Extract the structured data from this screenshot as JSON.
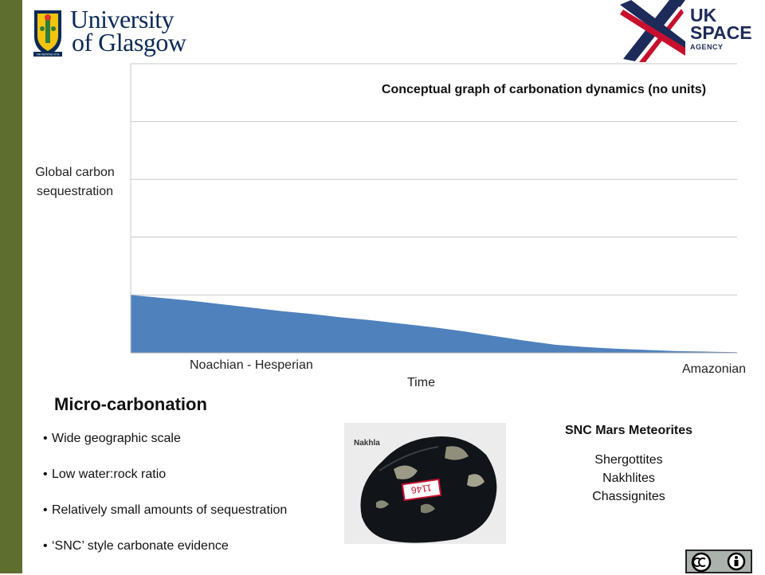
{
  "logos": {
    "university": {
      "line1": "University",
      "line2": "of Glasgow",
      "motto": "VIA VERITAS VITA"
    },
    "ukspace": {
      "line1": "UK",
      "line2": "SPACE",
      "line3": "AGENCY"
    },
    "license_icon": "creative-commons-by-icon"
  },
  "colors": {
    "sidebar": "#5e6e2f",
    "area_fill": "#4f81bd",
    "gridline": "#c8c8c8"
  },
  "chart_data": {
    "type": "area",
    "title": "Conceptual graph of carbonation dynamics (no units)",
    "ylabel": "Global carbon sequestration",
    "xlabel": "Time",
    "x_annotations": {
      "start": "Noachian - Hesperian",
      "end": "Amazonian"
    },
    "ylim": [
      0,
      5
    ],
    "xlim": [
      0,
      1
    ],
    "grid": true,
    "series": [
      {
        "x": [
          0,
          0.05,
          0.1,
          0.15,
          0.2,
          0.25,
          0.3,
          0.35,
          0.4,
          0.45,
          0.5,
          0.55,
          0.6,
          0.65,
          0.7,
          0.75,
          0.8,
          0.85,
          0.9,
          0.95,
          1.0
        ],
        "values": [
          1.0,
          0.95,
          0.9,
          0.84,
          0.78,
          0.72,
          0.67,
          0.61,
          0.56,
          0.5,
          0.44,
          0.37,
          0.29,
          0.21,
          0.14,
          0.1,
          0.07,
          0.05,
          0.03,
          0.02,
          0.01
        ]
      }
    ]
  },
  "micro": {
    "title": "Micro-carbonation",
    "bullets": [
      "Wide geographic scale",
      "Low water:rock ratio",
      "Relatively small amounts of sequestration",
      "‘SNC’ style carbonate evidence"
    ]
  },
  "photo": {
    "label": "Nakhla",
    "tag_text": "1146"
  },
  "snc": {
    "title": "SNC Mars Meteorites",
    "items": [
      "Shergottites",
      "Nakhlites",
      "Chassignites"
    ]
  }
}
